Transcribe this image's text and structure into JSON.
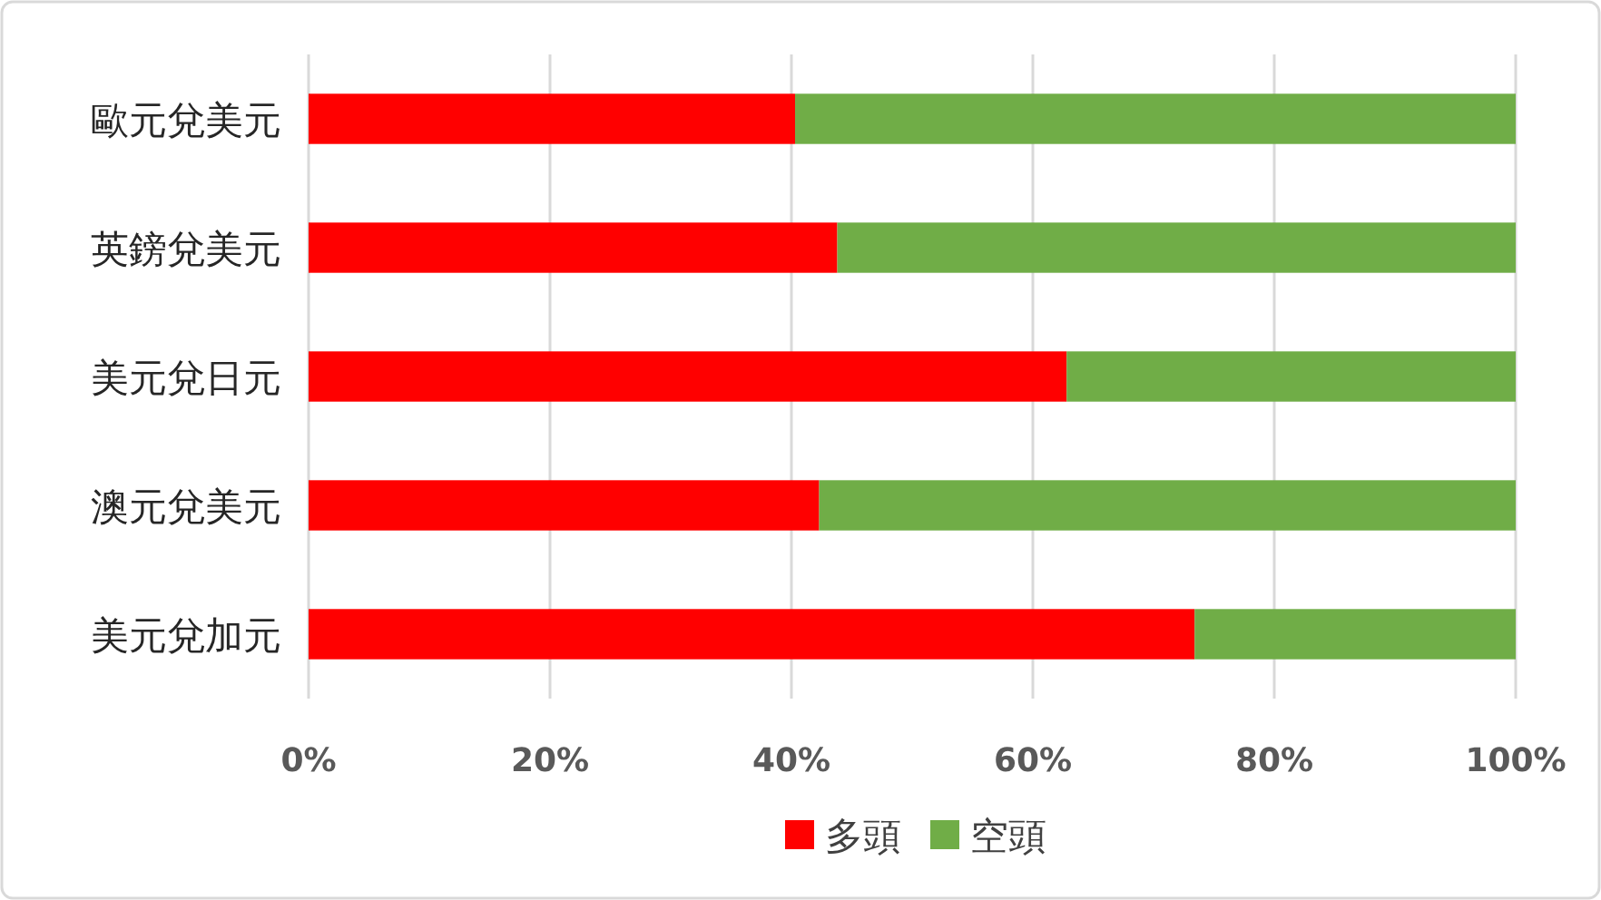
{
  "chart_data": {
    "type": "bar",
    "orientation": "horizontal",
    "stacked": true,
    "categories": [
      "歐元兌美元",
      "英鎊兌美元",
      "美元兌日元",
      "澳元兌美元",
      "美元兌加元"
    ],
    "series": [
      {
        "name": "多頭",
        "color": "#ff0000",
        "values": [
          40.3,
          43.8,
          62.8,
          42.3,
          73.4
        ]
      },
      {
        "name": "空頭",
        "color": "#70ad47",
        "values": [
          59.7,
          56.2,
          37.2,
          57.7,
          26.6
        ]
      }
    ],
    "xlim": [
      0,
      100
    ],
    "xticks": [
      {
        "value": 0,
        "label": "0%"
      },
      {
        "value": 20,
        "label": "20%"
      },
      {
        "value": 40,
        "label": "40%"
      },
      {
        "value": 60,
        "label": "60%"
      },
      {
        "value": 80,
        "label": "80%"
      },
      {
        "value": 100,
        "label": "100%"
      }
    ],
    "grid": "x",
    "legend": "bottom"
  }
}
